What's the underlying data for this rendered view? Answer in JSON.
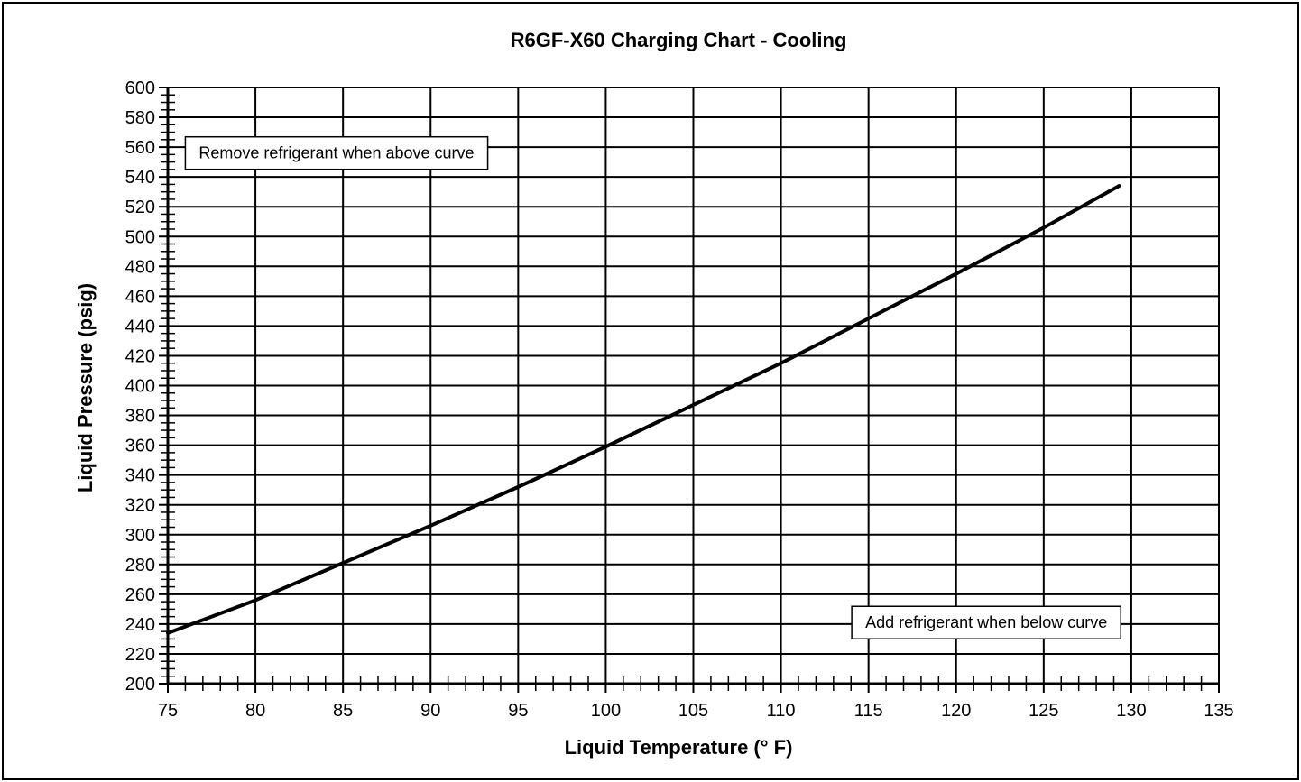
{
  "chart_data": {
    "type": "line",
    "title": "R6GF-X60 Charging Chart - Cooling",
    "xlabel": "Liquid Temperature (° F)",
    "ylabel": "Liquid Pressure (psig)",
    "xlim": [
      75,
      135
    ],
    "ylim": [
      200,
      600
    ],
    "x_ticks": [
      75,
      80,
      85,
      90,
      95,
      100,
      105,
      110,
      115,
      120,
      125,
      130,
      135
    ],
    "y_ticks": [
      200,
      220,
      240,
      260,
      280,
      300,
      320,
      340,
      360,
      380,
      400,
      420,
      440,
      460,
      480,
      500,
      520,
      540,
      560,
      580,
      600
    ],
    "grid": true,
    "series": [
      {
        "x": [
          75,
          80,
          85,
          90,
          95,
          100,
          105,
          110,
          115,
          120,
          125,
          129.3
        ],
        "y": [
          234,
          256,
          281,
          306,
          332,
          359,
          387,
          415,
          445,
          475,
          506,
          534
        ]
      }
    ],
    "annotations": [
      {
        "text": "Remove refrigerant when above curve",
        "x": 76.0,
        "y": 556
      },
      {
        "text": "Add refrigerant when below curve",
        "x": 129.4,
        "y": 241
      }
    ],
    "colors": {
      "line": "#000000",
      "grid": "#000000",
      "background": "#ffffff"
    }
  }
}
